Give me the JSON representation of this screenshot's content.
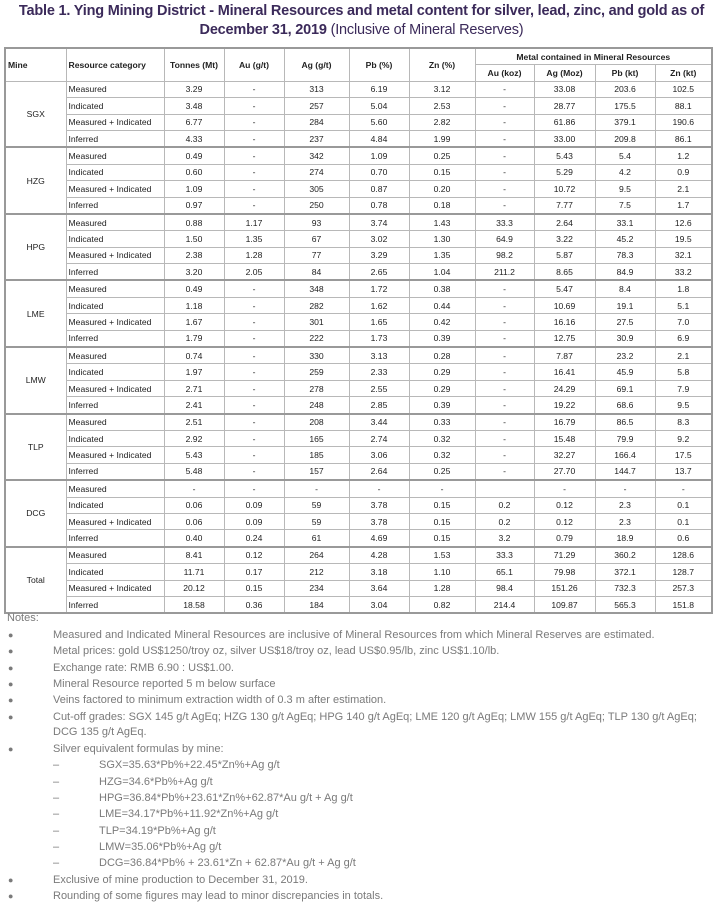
{
  "title": {
    "bold": "Table 1. Ying Mining District - Mineral Resources and metal content for silver, lead, zinc, and gold as of",
    "bold2": "December 31, 2019",
    "normal": "(Inclusive of Mineral Reserves)"
  },
  "table": {
    "headers": [
      "Mine",
      "Resource category",
      "Tonnes (Mt)",
      "Au (g/t)",
      "Ag (g/t)",
      "Pb (%)",
      "Zn (%)"
    ],
    "group_header": "Metal contained in Mineral Resources",
    "sub_headers": [
      "Au (koz)",
      "Ag (Moz)",
      "Pb (kt)",
      "Zn (kt)"
    ],
    "mines": [
      {
        "name": "SGX",
        "rows": [
          [
            "Measured",
            "3.29",
            "-",
            "313",
            "6.19",
            "3.12",
            "-",
            "33.08",
            "203.6",
            "102.5"
          ],
          [
            "Indicated",
            "3.48",
            "-",
            "257",
            "5.04",
            "2.53",
            "-",
            "28.77",
            "175.5",
            "88.1"
          ],
          [
            "Measured + Indicated",
            "6.77",
            "-",
            "284",
            "5.60",
            "2.82",
            "-",
            "61.86",
            "379.1",
            "190.6"
          ],
          [
            "Inferred",
            "4.33",
            "-",
            "237",
            "4.84",
            "1.99",
            "-",
            "33.00",
            "209.8",
            "86.1"
          ]
        ]
      },
      {
        "name": "HZG",
        "rows": [
          [
            "Measured",
            "0.49",
            "-",
            "342",
            "1.09",
            "0.25",
            "-",
            "5.43",
            "5.4",
            "1.2"
          ],
          [
            "Indicated",
            "0.60",
            "-",
            "274",
            "0.70",
            "0.15",
            "-",
            "5.29",
            "4.2",
            "0.9"
          ],
          [
            "Measured + Indicated",
            "1.09",
            "-",
            "305",
            "0.87",
            "0.20",
            "-",
            "10.72",
            "9.5",
            "2.1"
          ],
          [
            "Inferred",
            "0.97",
            "-",
            "250",
            "0.78",
            "0.18",
            "-",
            "7.77",
            "7.5",
            "1.7"
          ]
        ]
      },
      {
        "name": "HPG",
        "rows": [
          [
            "Measured",
            "0.88",
            "1.17",
            "93",
            "3.74",
            "1.43",
            "33.3",
            "2.64",
            "33.1",
            "12.6"
          ],
          [
            "Indicated",
            "1.50",
            "1.35",
            "67",
            "3.02",
            "1.30",
            "64.9",
            "3.22",
            "45.2",
            "19.5"
          ],
          [
            "Measured + Indicated",
            "2.38",
            "1.28",
            "77",
            "3.29",
            "1.35",
            "98.2",
            "5.87",
            "78.3",
            "32.1"
          ],
          [
            "Inferred",
            "3.20",
            "2.05",
            "84",
            "2.65",
            "1.04",
            "211.2",
            "8.65",
            "84.9",
            "33.2"
          ]
        ]
      },
      {
        "name": "LME",
        "rows": [
          [
            "Measured",
            "0.49",
            "-",
            "348",
            "1.72",
            "0.38",
            "-",
            "5.47",
            "8.4",
            "1.8"
          ],
          [
            "Indicated",
            "1.18",
            "-",
            "282",
            "1.62",
            "0.44",
            "-",
            "10.69",
            "19.1",
            "5.1"
          ],
          [
            "Measured + Indicated",
            "1.67",
            "-",
            "301",
            "1.65",
            "0.42",
            "-",
            "16.16",
            "27.5",
            "7.0"
          ],
          [
            "Inferred",
            "1.79",
            "-",
            "222",
            "1.73",
            "0.39",
            "-",
            "12.75",
            "30.9",
            "6.9"
          ]
        ]
      },
      {
        "name": "LMW",
        "rows": [
          [
            "Measured",
            "0.74",
            "-",
            "330",
            "3.13",
            "0.28",
            "-",
            "7.87",
            "23.2",
            "2.1"
          ],
          [
            "Indicated",
            "1.97",
            "-",
            "259",
            "2.33",
            "0.29",
            "-",
            "16.41",
            "45.9",
            "5.8"
          ],
          [
            "Measured + Indicated",
            "2.71",
            "-",
            "278",
            "2.55",
            "0.29",
            "-",
            "24.29",
            "69.1",
            "7.9"
          ],
          [
            "Inferred",
            "2.41",
            "-",
            "248",
            "2.85",
            "0.39",
            "-",
            "19.22",
            "68.6",
            "9.5"
          ]
        ]
      },
      {
        "name": "TLP",
        "rows": [
          [
            "Measured",
            "2.51",
            "-",
            "208",
            "3.44",
            "0.33",
            "-",
            "16.79",
            "86.5",
            "8.3"
          ],
          [
            "Indicated",
            "2.92",
            "-",
            "165",
            "2.74",
            "0.32",
            "-",
            "15.48",
            "79.9",
            "9.2"
          ],
          [
            "Measured + Indicated",
            "5.43",
            "-",
            "185",
            "3.06",
            "0.32",
            "-",
            "32.27",
            "166.4",
            "17.5"
          ],
          [
            "Inferred",
            "5.48",
            "-",
            "157",
            "2.64",
            "0.25",
            "-",
            "27.70",
            "144.7",
            "13.7"
          ]
        ]
      },
      {
        "name": "DCG",
        "rows": [
          [
            "Measured",
            "-",
            "-",
            "-",
            "-",
            "-",
            "",
            "-",
            "-",
            "-"
          ],
          [
            "Indicated",
            "0.06",
            "0.09",
            "59",
            "3.78",
            "0.15",
            "0.2",
            "0.12",
            "2.3",
            "0.1"
          ],
          [
            "Measured + Indicated",
            "0.06",
            "0.09",
            "59",
            "3.78",
            "0.15",
            "0.2",
            "0.12",
            "2.3",
            "0.1"
          ],
          [
            "Inferred",
            "0.40",
            "0.24",
            "61",
            "4.69",
            "0.15",
            "3.2",
            "0.79",
            "18.9",
            "0.6"
          ]
        ]
      },
      {
        "name": "Total",
        "rows": [
          [
            "Measured",
            "8.41",
            "0.12",
            "264",
            "4.28",
            "1.53",
            "33.3",
            "71.29",
            "360.2",
            "128.6"
          ],
          [
            "Indicated",
            "11.71",
            "0.17",
            "212",
            "3.18",
            "1.10",
            "65.1",
            "79.98",
            "372.1",
            "128.7"
          ],
          [
            "Measured + Indicated",
            "20.12",
            "0.15",
            "234",
            "3.64",
            "1.28",
            "98.4",
            "151.26",
            "732.3",
            "257.3"
          ],
          [
            "Inferred",
            "18.58",
            "0.36",
            "184",
            "3.04",
            "0.82",
            "214.4",
            "109.87",
            "565.3",
            "151.8"
          ]
        ]
      }
    ]
  },
  "notes": {
    "label": "Notes:",
    "items": [
      {
        "text": "Measured and Indicated Mineral Resources are inclusive of Mineral Resources from which Mineral Reserves are estimated."
      },
      {
        "text": "Metal prices: gold US$1250/troy oz, silver US$18/troy oz, lead US$0.95/lb, zinc US$1.10/lb."
      },
      {
        "text": "Exchange rate: RMB 6.90 : US$1.00."
      },
      {
        "text": "Mineral Resource reported 5 m below surface"
      },
      {
        "text": "Veins factored to minimum extraction width of 0.3 m after estimation."
      },
      {
        "text": "Cut-off grades: SGX 145 g/t AgEq; HZG 130 g/t AgEq; HPG 140 g/t AgEq; LME 120 g/t AgEq; LMW 155 g/t AgEq; TLP 130 g/t AgEq; DCG 135 g/t AgEq.",
        "lines": 2
      },
      {
        "text": "Silver equivalent formulas by mine:"
      },
      {
        "sub": "SGX=35.63*Pb%+22.45*Zn%+Ag g/t"
      },
      {
        "sub": "HZG=34.6*Pb%+Ag g/t"
      },
      {
        "sub": "HPG=36.84*Pb%+23.61*Zn%+62.87*Au g/t + Ag g/t"
      },
      {
        "sub": "LME=34.17*Pb%+11.92*Zn%+Ag g/t"
      },
      {
        "sub": "TLP=34.19*Pb%+Ag g/t"
      },
      {
        "sub": "LMW=35.06*Pb%+Ag g/t"
      },
      {
        "sub": "DCG=36.84*Pb% + 23.61*Zn + 62.87*Au g/t + Ag g/t"
      },
      {
        "text": "Exclusive of mine production to December 31, 2019."
      },
      {
        "text": "Rounding of some figures may lead to minor discrepancies in totals."
      }
    ],
    "bullet": "●",
    "dash": "–"
  }
}
